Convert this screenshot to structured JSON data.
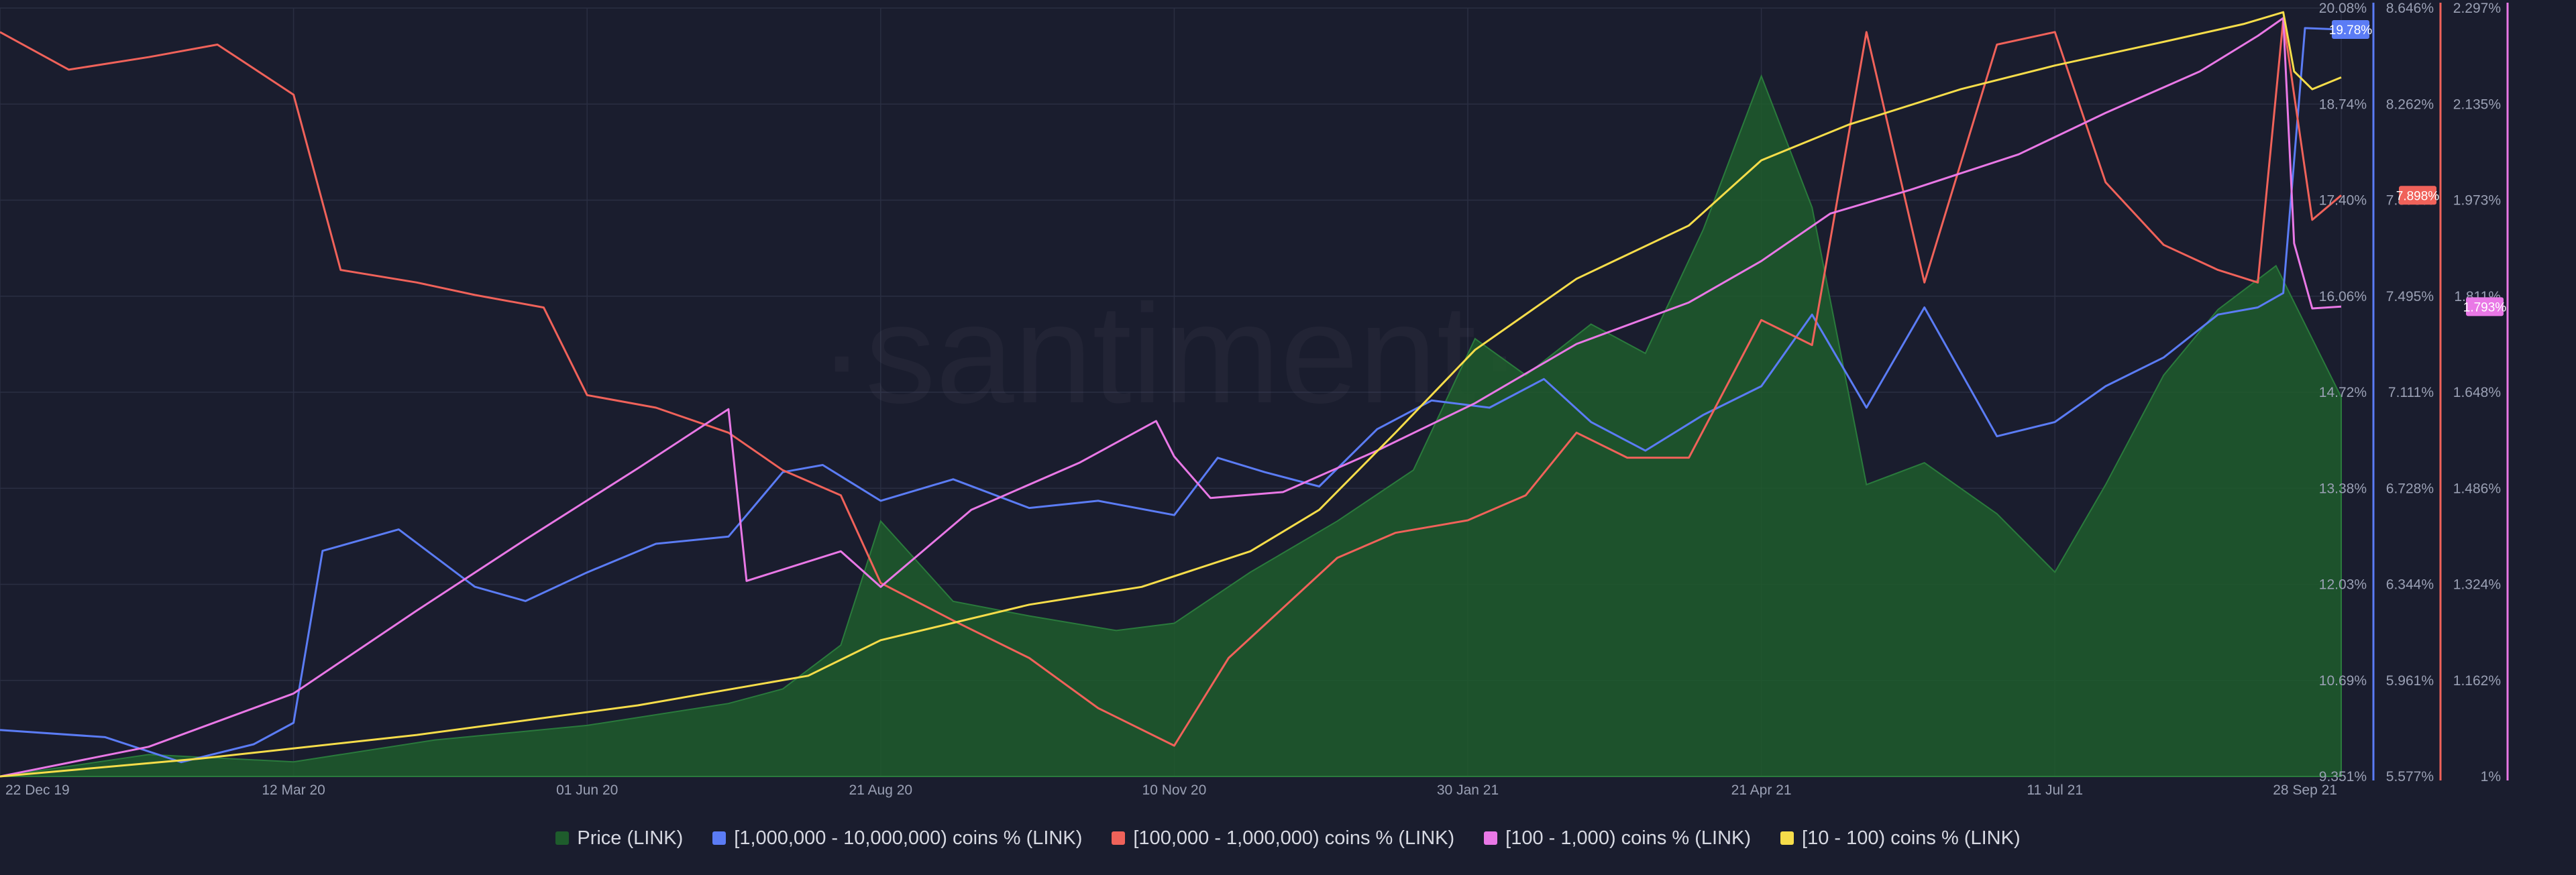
{
  "watermark": "·santiment·",
  "colors": {
    "background": "#1a1d2e",
    "grid": "#2a2e42",
    "axis_text": "#9aa0b4",
    "price": "#1e5c2c",
    "price_line": "#2a7a3c",
    "whales_1m_10m": "#5b7cf5",
    "holders_100k_1m": "#f0625a",
    "holders_100_1k": "#e978e6",
    "holders_10_100": "#f6dd4a"
  },
  "chart_data": {
    "type": "line",
    "title": "",
    "x_ticks": [
      "22 Dec 19",
      "12 Mar 20",
      "01 Jun 20",
      "21 Aug 20",
      "10 Nov 20",
      "30 Jan 21",
      "21 Apr 21",
      "11 Jul 21",
      "28 Sep 21"
    ],
    "x_range": [
      "2019-12-22",
      "2021-09-28"
    ],
    "axes": {
      "y_blue": {
        "ticks": [
          "20.08%",
          "18.74%",
          "17.40%",
          "16.06%",
          "14.72%",
          "13.38%",
          "12.03%",
          "10.69%",
          "9.351%"
        ],
        "range": [
          9.351,
          20.08
        ]
      },
      "y_red": {
        "ticks": [
          "8.646%",
          "8.262%",
          "7.878%",
          "7.495%",
          "7.111%",
          "6.728%",
          "6.344%",
          "5.961%",
          "5.577%"
        ],
        "range": [
          5.577,
          8.646
        ]
      },
      "y_pink": {
        "ticks": [
          "2.297%",
          "2.135%",
          "1.973%",
          "1.811%",
          "1.648%",
          "1.486%",
          "1.324%",
          "1.162%",
          "1%"
        ],
        "range": [
          1.0,
          2.297
        ]
      }
    },
    "current_value_badges": [
      {
        "series": "[1,000,000 - 10,000,000) coins % (LINK)",
        "label": "19.78%",
        "value": 19.78,
        "axis": "y_blue"
      },
      {
        "series": "[100,000  - 1,000,000) coins % (LINK)",
        "label": "7.898%",
        "value": 7.898,
        "axis": "y_red"
      },
      {
        "series": "[100 - 1,000) coins % (LINK)",
        "label": "1.793%",
        "value": 1.793,
        "axis": "y_pink"
      }
    ],
    "legend_position": "bottom-center",
    "grid": true,
    "series": [
      {
        "name": "Price (LINK)",
        "type": "area",
        "axis": "hidden_price",
        "x": [
          "2019-12-22",
          "2020-02-01",
          "2020-03-12",
          "2020-04-20",
          "2020-06-01",
          "2020-07-10",
          "2020-07-25",
          "2020-08-10",
          "2020-08-21",
          "2020-09-10",
          "2020-10-01",
          "2020-10-25",
          "2020-11-10",
          "2020-12-01",
          "2020-12-25",
          "2021-01-15",
          "2021-02-01",
          "2021-02-15",
          "2021-03-05",
          "2021-03-20",
          "2021-04-05",
          "2021-04-21",
          "2021-05-05",
          "2021-05-20",
          "2021-06-05",
          "2021-06-25",
          "2021-07-11",
          "2021-07-25",
          "2021-08-10",
          "2021-08-25",
          "2021-09-10",
          "2021-09-28"
        ],
        "values": [
          0,
          0.03,
          0.02,
          0.05,
          0.07,
          0.1,
          0.12,
          0.18,
          0.35,
          0.24,
          0.22,
          0.2,
          0.21,
          0.28,
          0.35,
          0.42,
          0.6,
          0.55,
          0.62,
          0.58,
          0.75,
          0.96,
          0.78,
          0.4,
          0.43,
          0.36,
          0.28,
          0.4,
          0.55,
          0.64,
          0.7,
          0.52
        ]
      },
      {
        "name": "[1,000,000 - 10,000,000) coins % (LINK)",
        "type": "line",
        "axis": "y_blue",
        "x": [
          "2019-12-22",
          "2020-01-20",
          "2020-02-10",
          "2020-03-01",
          "2020-03-12",
          "2020-03-20",
          "2020-04-10",
          "2020-05-01",
          "2020-05-15",
          "2020-06-01",
          "2020-06-20",
          "2020-07-10",
          "2020-07-25",
          "2020-08-05",
          "2020-08-21",
          "2020-09-10",
          "2020-10-01",
          "2020-10-20",
          "2020-11-10",
          "2020-11-22",
          "2020-12-05",
          "2020-12-20",
          "2021-01-05",
          "2021-01-20",
          "2021-02-05",
          "2021-02-20",
          "2021-03-05",
          "2021-03-20",
          "2021-04-05",
          "2021-04-21",
          "2021-05-05",
          "2021-05-20",
          "2021-06-05",
          "2021-06-25",
          "2021-07-11",
          "2021-07-25",
          "2021-08-10",
          "2021-08-25",
          "2021-09-05",
          "2021-09-12",
          "2021-09-18",
          "2021-09-28"
        ],
        "values": [
          10.0,
          9.9,
          9.55,
          9.8,
          10.1,
          12.5,
          12.8,
          12.0,
          11.8,
          12.2,
          12.6,
          12.7,
          13.6,
          13.7,
          13.2,
          13.5,
          13.1,
          13.2,
          13.0,
          13.8,
          13.6,
          13.4,
          14.2,
          14.6,
          14.5,
          14.9,
          14.3,
          13.9,
          14.4,
          14.8,
          15.8,
          14.5,
          15.9,
          14.1,
          14.3,
          14.8,
          15.2,
          15.8,
          15.9,
          16.1,
          19.8,
          19.78
        ]
      },
      {
        "name": "[100,000  - 1,000,000) coins % (LINK)",
        "type": "line",
        "axis": "y_red",
        "x": [
          "2019-12-22",
          "2020-01-10",
          "2020-02-01",
          "2020-02-20",
          "2020-03-12",
          "2020-03-25",
          "2020-04-15",
          "2020-05-01",
          "2020-05-20",
          "2020-06-01",
          "2020-06-20",
          "2020-07-10",
          "2020-07-25",
          "2020-08-10",
          "2020-08-21",
          "2020-09-10",
          "2020-10-01",
          "2020-10-20",
          "2020-11-10",
          "2020-11-25",
          "2020-12-10",
          "2020-12-25",
          "2021-01-10",
          "2021-01-30",
          "2021-02-15",
          "2021-03-01",
          "2021-03-15",
          "2021-04-01",
          "2021-04-21",
          "2021-05-05",
          "2021-05-20",
          "2021-06-05",
          "2021-06-25",
          "2021-07-11",
          "2021-07-25",
          "2021-08-10",
          "2021-08-25",
          "2021-09-05",
          "2021-09-12",
          "2021-09-20",
          "2021-09-28"
        ],
        "values": [
          8.55,
          8.4,
          8.45,
          8.5,
          8.3,
          7.6,
          7.55,
          7.5,
          7.45,
          7.1,
          7.05,
          6.95,
          6.8,
          6.7,
          6.35,
          6.2,
          6.05,
          5.85,
          5.7,
          6.05,
          6.25,
          6.45,
          6.55,
          6.6,
          6.7,
          6.95,
          6.85,
          6.85,
          7.4,
          7.3,
          8.55,
          7.55,
          8.5,
          8.55,
          7.95,
          7.7,
          7.6,
          7.55,
          8.6,
          7.8,
          7.898
        ]
      },
      {
        "name": "[100 - 1,000) coins % (LINK)",
        "type": "line",
        "axis": "y_pink",
        "x": [
          "2019-12-22",
          "2020-02-01",
          "2020-03-12",
          "2020-04-15",
          "2020-05-15",
          "2020-06-15",
          "2020-07-10",
          "2020-07-15",
          "2020-08-10",
          "2020-08-21",
          "2020-09-15",
          "2020-10-15",
          "2020-11-05",
          "2020-11-10",
          "2020-11-20",
          "2020-12-10",
          "2021-01-05",
          "2021-02-01",
          "2021-03-01",
          "2021-04-01",
          "2021-04-21",
          "2021-05-10",
          "2021-06-01",
          "2021-07-01",
          "2021-07-25",
          "2021-08-20",
          "2021-09-05",
          "2021-09-12",
          "2021-09-15",
          "2021-09-20",
          "2021-09-28"
        ],
        "values": [
          1.0,
          1.05,
          1.14,
          1.28,
          1.4,
          1.52,
          1.62,
          1.33,
          1.38,
          1.32,
          1.45,
          1.53,
          1.6,
          1.54,
          1.47,
          1.48,
          1.55,
          1.63,
          1.73,
          1.8,
          1.87,
          1.95,
          1.99,
          2.05,
          2.12,
          2.19,
          2.25,
          2.28,
          1.9,
          1.79,
          1.793
        ]
      },
      {
        "name": "[10 - 100) coins % (LINK)",
        "type": "line",
        "axis": "y_pink",
        "x": [
          "2019-12-22",
          "2020-02-15",
          "2020-04-15",
          "2020-06-15",
          "2020-08-01",
          "2020-08-21",
          "2020-10-01",
          "2020-11-01",
          "2020-12-01",
          "2020-12-20",
          "2021-01-10",
          "2021-02-01",
          "2021-03-01",
          "2021-04-01",
          "2021-04-21",
          "2021-05-15",
          "2021-06-15",
          "2021-07-11",
          "2021-08-10",
          "2021-09-01",
          "2021-09-12",
          "2021-09-15",
          "2021-09-20",
          "2021-09-28"
        ],
        "values": [
          1.0,
          1.03,
          1.07,
          1.12,
          1.17,
          1.23,
          1.29,
          1.32,
          1.38,
          1.45,
          1.58,
          1.72,
          1.84,
          1.93,
          2.04,
          2.1,
          2.16,
          2.2,
          2.24,
          2.27,
          2.29,
          2.19,
          2.16,
          2.18
        ]
      }
    ]
  }
}
